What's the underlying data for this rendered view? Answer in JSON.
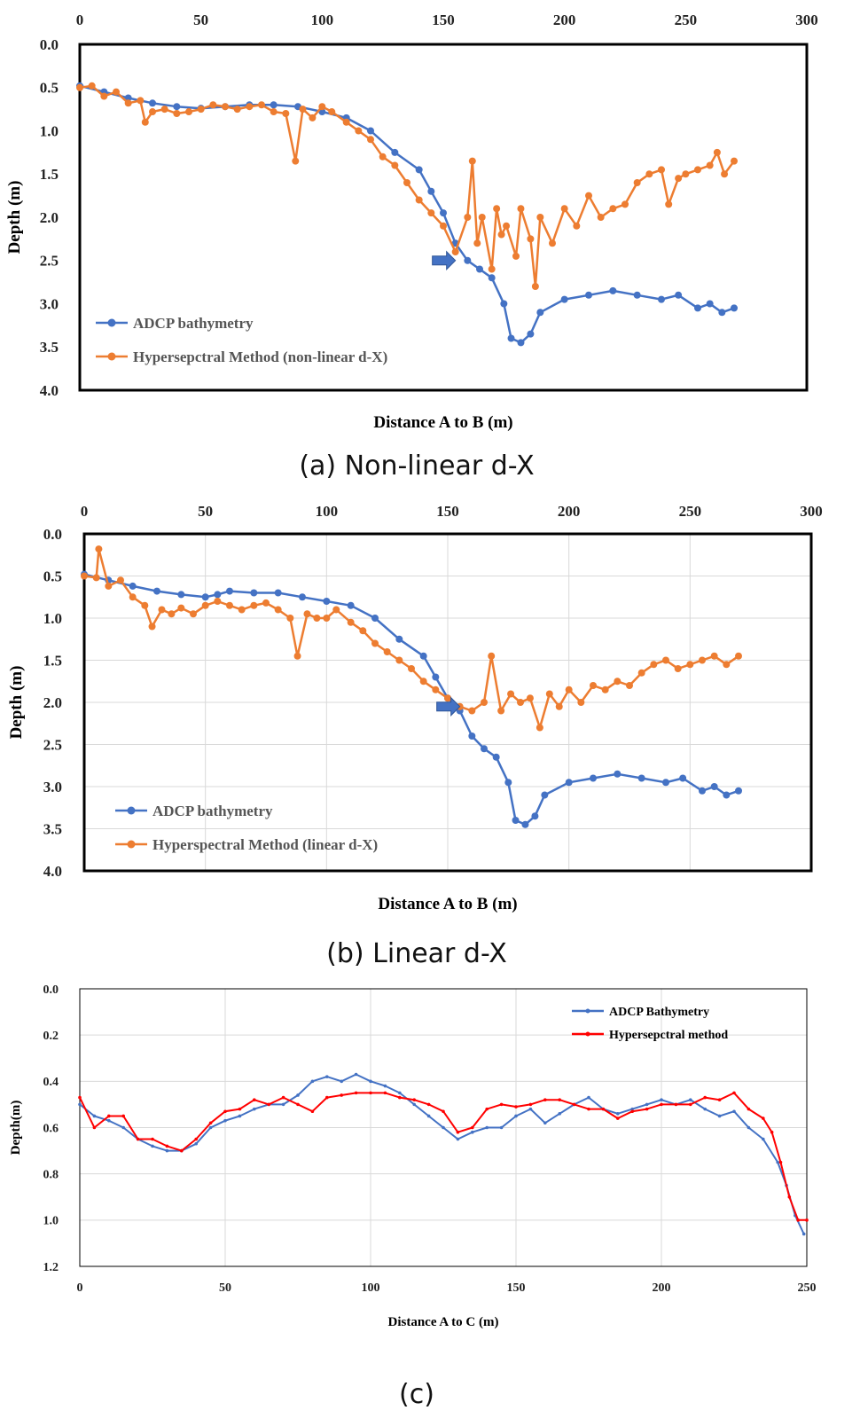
{
  "colors": {
    "blue": "#4472c4",
    "orange": "#ed7d31",
    "red": "#ff0000",
    "arrow": "#4472c4"
  },
  "chart_data": [
    {
      "id": "a",
      "type": "line",
      "caption": "(a) Non-linear d-X",
      "xlabel": "Distance A to B (m)",
      "ylabel": "Depth (m)",
      "xlim": [
        0,
        300
      ],
      "ylim": [
        0,
        4.0
      ],
      "y_reversed": true,
      "x_ticks": [
        "0",
        "50",
        "100",
        "150",
        "200",
        "250",
        "300"
      ],
      "y_ticks": [
        "0.0",
        "0.5",
        "1.0",
        "1.5",
        "2.0",
        "2.5",
        "3.0",
        "3.5",
        "4.0"
      ],
      "legend": [
        "ADCP bathymetry",
        "Hypersepctral Method (non-linear d-X)"
      ],
      "annotation": {
        "type": "arrow",
        "x": 155,
        "y": 2.5
      },
      "series": [
        {
          "name": "ADCP bathymetry",
          "color": "#4472c4",
          "x": [
            0,
            10,
            20,
            30,
            40,
            50,
            60,
            70,
            80,
            90,
            100,
            110,
            120,
            130,
            140,
            145,
            150,
            155,
            160,
            165,
            170,
            175,
            178,
            182,
            186,
            190,
            200,
            210,
            220,
            230,
            240,
            247,
            255,
            260,
            265,
            270
          ],
          "y": [
            0.48,
            0.55,
            0.62,
            0.68,
            0.72,
            0.74,
            0.72,
            0.7,
            0.7,
            0.72,
            0.78,
            0.85,
            1.0,
            1.25,
            1.45,
            1.7,
            1.95,
            2.3,
            2.5,
            2.6,
            2.7,
            3.0,
            3.4,
            3.45,
            3.35,
            3.1,
            2.95,
            2.9,
            2.85,
            2.9,
            2.95,
            2.9,
            3.05,
            3.0,
            3.1,
            3.05
          ]
        },
        {
          "name": "Hypersepctral Method (non-linear d-X)",
          "color": "#ed7d31",
          "x": [
            0,
            5,
            10,
            15,
            20,
            25,
            27,
            30,
            35,
            40,
            45,
            50,
            55,
            60,
            65,
            70,
            75,
            80,
            85,
            89,
            92,
            96,
            100,
            104,
            110,
            115,
            120,
            125,
            130,
            135,
            140,
            145,
            150,
            155,
            160,
            162,
            164,
            166,
            170,
            172,
            174,
            176,
            180,
            182,
            186,
            188,
            190,
            195,
            200,
            205,
            210,
            215,
            220,
            225,
            230,
            235,
            240,
            243,
            247,
            250,
            255,
            260,
            263,
            266,
            270
          ],
          "y": [
            0.5,
            0.48,
            0.6,
            0.55,
            0.68,
            0.65,
            0.9,
            0.78,
            0.75,
            0.8,
            0.78,
            0.75,
            0.7,
            0.72,
            0.75,
            0.72,
            0.7,
            0.78,
            0.8,
            1.35,
            0.75,
            0.85,
            0.72,
            0.78,
            0.9,
            1.0,
            1.1,
            1.3,
            1.4,
            1.6,
            1.8,
            1.95,
            2.1,
            2.4,
            2.0,
            1.35,
            2.3,
            2.0,
            2.6,
            1.9,
            2.2,
            2.1,
            2.45,
            1.9,
            2.25,
            2.8,
            2.0,
            2.3,
            1.9,
            2.1,
            1.75,
            2.0,
            1.9,
            1.85,
            1.6,
            1.5,
            1.45,
            1.85,
            1.55,
            1.5,
            1.45,
            1.4,
            1.25,
            1.5,
            1.35
          ]
        }
      ]
    },
    {
      "id": "b",
      "type": "line",
      "caption": "(b) Linear d-X",
      "xlabel": "Distance A to B (m)",
      "ylabel": "Depth (m)",
      "xlim": [
        0,
        300
      ],
      "ylim": [
        0,
        4.0
      ],
      "y_reversed": true,
      "x_ticks": [
        "0",
        "50",
        "100",
        "150",
        "200",
        "250",
        "300"
      ],
      "y_ticks": [
        "0.0",
        "0.5",
        "1.0",
        "1.5",
        "2.0",
        "2.5",
        "3.0",
        "3.5",
        "4.0"
      ],
      "legend": [
        "ADCP bathymetry",
        "Hyperspectral Method (linear d-X)"
      ],
      "annotation": {
        "type": "arrow",
        "x": 155,
        "y": 2.05
      },
      "series": [
        {
          "name": "ADCP bathymetry",
          "color": "#4472c4",
          "x": [
            0,
            10,
            20,
            30,
            40,
            50,
            55,
            60,
            70,
            80,
            90,
            100,
            110,
            120,
            130,
            140,
            145,
            150,
            155,
            160,
            165,
            170,
            175,
            178,
            182,
            186,
            190,
            200,
            210,
            220,
            230,
            240,
            247,
            255,
            260,
            265,
            270
          ],
          "y": [
            0.48,
            0.55,
            0.62,
            0.68,
            0.72,
            0.75,
            0.72,
            0.68,
            0.7,
            0.7,
            0.75,
            0.8,
            0.85,
            1.0,
            1.25,
            1.45,
            1.7,
            1.95,
            2.1,
            2.4,
            2.55,
            2.65,
            2.95,
            3.4,
            3.45,
            3.35,
            3.1,
            2.95,
            2.9,
            2.85,
            2.9,
            2.95,
            2.9,
            3.05,
            3.0,
            3.1,
            3.05
          ]
        },
        {
          "name": "Hyperspectral Method (linear d-X)",
          "color": "#ed7d31",
          "x": [
            0,
            5,
            6,
            10,
            15,
            20,
            25,
            28,
            32,
            36,
            40,
            45,
            50,
            55,
            60,
            65,
            70,
            75,
            80,
            85,
            88,
            92,
            96,
            100,
            104,
            110,
            115,
            120,
            125,
            130,
            135,
            140,
            145,
            150,
            155,
            160,
            165,
            168,
            172,
            176,
            180,
            184,
            188,
            192,
            196,
            200,
            205,
            210,
            215,
            220,
            225,
            230,
            235,
            240,
            245,
            250,
            255,
            260,
            265,
            270
          ],
          "y": [
            0.5,
            0.52,
            0.18,
            0.62,
            0.55,
            0.75,
            0.85,
            1.1,
            0.9,
            0.95,
            0.88,
            0.95,
            0.85,
            0.8,
            0.85,
            0.9,
            0.85,
            0.82,
            0.9,
            1.0,
            1.45,
            0.95,
            1.0,
            1.0,
            0.9,
            1.05,
            1.15,
            1.3,
            1.4,
            1.5,
            1.6,
            1.75,
            1.85,
            1.95,
            2.05,
            2.1,
            2.0,
            1.45,
            2.1,
            1.9,
            2.0,
            1.95,
            2.3,
            1.9,
            2.05,
            1.85,
            2.0,
            1.8,
            1.85,
            1.75,
            1.8,
            1.65,
            1.55,
            1.5,
            1.6,
            1.55,
            1.5,
            1.45,
            1.55,
            1.45
          ]
        }
      ]
    },
    {
      "id": "c",
      "type": "line",
      "caption": "(c)",
      "xlabel": "Distance A to C (m)",
      "ylabel": "Depth(m)",
      "xlim": [
        0,
        250
      ],
      "ylim": [
        0,
        1.2
      ],
      "y_reversed": true,
      "x_ticks": [
        "0",
        "50",
        "100",
        "150",
        "200",
        "250"
      ],
      "y_ticks": [
        "0.0",
        "0.2",
        "0.4",
        "0.6",
        "0.8",
        "1.0",
        "1.2"
      ],
      "legend": [
        "ADCP Bathymetry",
        "Hypersepctral method"
      ],
      "series": [
        {
          "name": "ADCP Bathymetry",
          "color": "#4472c4",
          "x": [
            0,
            5,
            10,
            15,
            20,
            25,
            30,
            35,
            40,
            45,
            50,
            55,
            60,
            65,
            70,
            75,
            80,
            85,
            90,
            95,
            100,
            105,
            110,
            115,
            120,
            125,
            130,
            135,
            140,
            145,
            150,
            155,
            160,
            165,
            170,
            175,
            180,
            185,
            190,
            195,
            200,
            205,
            210,
            215,
            220,
            225,
            230,
            235,
            240,
            243,
            246,
            249
          ],
          "y": [
            0.5,
            0.55,
            0.57,
            0.6,
            0.65,
            0.68,
            0.7,
            0.7,
            0.67,
            0.6,
            0.57,
            0.55,
            0.52,
            0.5,
            0.5,
            0.46,
            0.4,
            0.38,
            0.4,
            0.37,
            0.4,
            0.42,
            0.45,
            0.5,
            0.55,
            0.6,
            0.65,
            0.62,
            0.6,
            0.6,
            0.55,
            0.52,
            0.58,
            0.54,
            0.5,
            0.47,
            0.52,
            0.54,
            0.52,
            0.5,
            0.48,
            0.5,
            0.48,
            0.52,
            0.55,
            0.53,
            0.6,
            0.65,
            0.75,
            0.85,
            0.98,
            1.06
          ]
        },
        {
          "name": "Hypersepctral method",
          "color": "#ff0000",
          "x": [
            0,
            5,
            10,
            15,
            20,
            25,
            30,
            35,
            40,
            45,
            50,
            55,
            60,
            65,
            70,
            75,
            80,
            85,
            90,
            95,
            100,
            105,
            110,
            115,
            120,
            125,
            130,
            135,
            140,
            145,
            150,
            155,
            160,
            165,
            170,
            175,
            180,
            185,
            190,
            195,
            200,
            205,
            210,
            215,
            220,
            225,
            230,
            235,
            238,
            241,
            244,
            247,
            250
          ],
          "y": [
            0.47,
            0.6,
            0.55,
            0.55,
            0.65,
            0.65,
            0.68,
            0.7,
            0.65,
            0.58,
            0.53,
            0.52,
            0.48,
            0.5,
            0.47,
            0.5,
            0.53,
            0.47,
            0.46,
            0.45,
            0.45,
            0.45,
            0.47,
            0.48,
            0.5,
            0.53,
            0.62,
            0.6,
            0.52,
            0.5,
            0.51,
            0.5,
            0.48,
            0.48,
            0.5,
            0.52,
            0.52,
            0.56,
            0.53,
            0.52,
            0.5,
            0.5,
            0.5,
            0.47,
            0.48,
            0.45,
            0.52,
            0.56,
            0.62,
            0.75,
            0.9,
            1.0,
            1.0
          ]
        }
      ]
    }
  ]
}
